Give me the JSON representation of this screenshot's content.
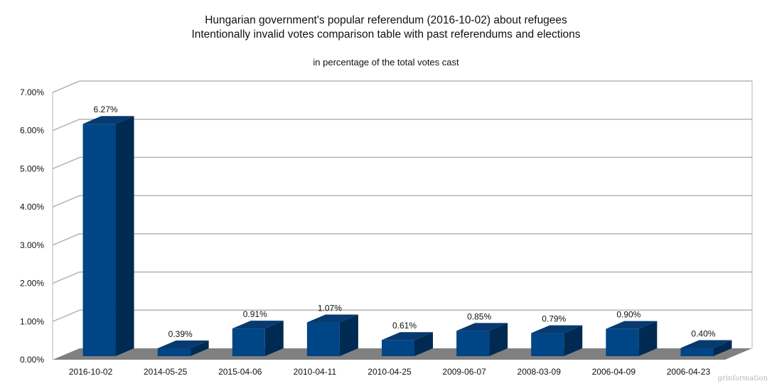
{
  "chart_data": {
    "type": "bar",
    "title": "Hungarian government's popular referendum (2016-10-02) about refugees",
    "subtitle": "Intentionally invalid votes comparison table with past referendums and elections",
    "annotation": "in percentage of the total votes cast",
    "categories": [
      "2016-10-02",
      "2014-05-25",
      "2015-04-06",
      "2010-04-11",
      "2010-04-25",
      "2009-06-07",
      "2008-03-09",
      "2006-04-09",
      "2006-04-23"
    ],
    "values": [
      6.27,
      0.39,
      0.91,
      1.07,
      0.61,
      0.85,
      0.79,
      0.9,
      0.4
    ],
    "value_labels": [
      "6.27%",
      "0.39%",
      "0.91%",
      "1.07%",
      "0.61%",
      "0.85%",
      "0.79%",
      "0.90%",
      "0.40%"
    ],
    "y_ticks": [
      "0.00%",
      "1.00%",
      "2.00%",
      "3.00%",
      "4.00%",
      "5.00%",
      "6.00%",
      "7.00%"
    ],
    "ylim": [
      0,
      7
    ],
    "grid": true,
    "style": "3d",
    "colors": {
      "bar_front": "#004586",
      "bar_side": "#002a52",
      "bar_top": "#063a70",
      "floor": "#808080",
      "grid": "#b3b3b3"
    }
  },
  "watermark": "grinformation"
}
